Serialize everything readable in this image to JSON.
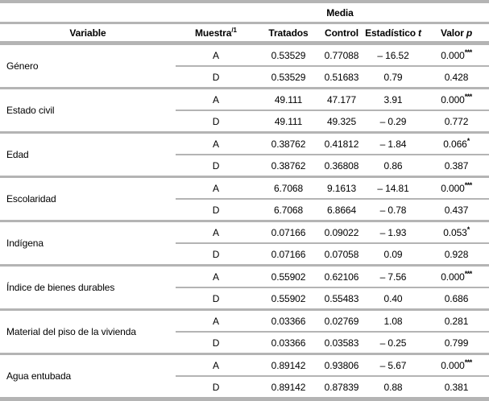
{
  "table": {
    "header": {
      "media": "Media",
      "variable": "Variable",
      "muestra": "Muestra",
      "muestra_sup": "/1",
      "tratados": "Tratados",
      "control": "Control",
      "estadistico": "Estadístico",
      "estadistico_sym": "t",
      "valor": "Valor",
      "valor_sym": "p"
    },
    "colors": {
      "line": "#b4b4b4",
      "text": "#000000"
    },
    "groups": [
      {
        "variable": "Género",
        "rows": [
          {
            "muestra": "A",
            "tratados": "0.53529",
            "control": "0.77088",
            "t": "– 16.52",
            "p": "0.000",
            "stars": "***"
          },
          {
            "muestra": "D",
            "tratados": "0.53529",
            "control": "0.51683",
            "t": "0.79",
            "p": "0.428",
            "stars": ""
          }
        ]
      },
      {
        "variable": "Estado civil",
        "rows": [
          {
            "muestra": "A",
            "tratados": "49.111",
            "control": "47.177",
            "t": "3.91",
            "p": "0.000",
            "stars": "***"
          },
          {
            "muestra": "D",
            "tratados": "49.111",
            "control": "49.325",
            "t": "– 0.29",
            "p": "0.772",
            "stars": ""
          }
        ]
      },
      {
        "variable": "Edad",
        "rows": [
          {
            "muestra": "A",
            "tratados": "0.38762",
            "control": "0.41812",
            "t": "– 1.84",
            "p": "0.066",
            "stars": "*"
          },
          {
            "muestra": "D",
            "tratados": "0.38762",
            "control": "0.36808",
            "t": "0.86",
            "p": "0.387",
            "stars": ""
          }
        ]
      },
      {
        "variable": "Escolaridad",
        "rows": [
          {
            "muestra": "A",
            "tratados": "6.7068",
            "control": "9.1613",
            "t": "– 14.81",
            "p": "0.000",
            "stars": "***"
          },
          {
            "muestra": "D",
            "tratados": "6.7068",
            "control": "6.8664",
            "t": "– 0.78",
            "p": "0.437",
            "stars": ""
          }
        ]
      },
      {
        "variable": "Indígena",
        "rows": [
          {
            "muestra": "A",
            "tratados": "0.07166",
            "control": "0.09022",
            "t": "– 1.93",
            "p": "0.053",
            "stars": "*"
          },
          {
            "muestra": "D",
            "tratados": "0.07166",
            "control": "0.07058",
            "t": "0.09",
            "p": "0.928",
            "stars": ""
          }
        ]
      },
      {
        "variable": "Índice de bienes durables",
        "rows": [
          {
            "muestra": "A",
            "tratados": "0.55902",
            "control": "0.62106",
            "t": "– 7.56",
            "p": "0.000",
            "stars": "***"
          },
          {
            "muestra": "D",
            "tratados": "0.55902",
            "control": "0.55483",
            "t": "0.40",
            "p": "0.686",
            "stars": ""
          }
        ]
      },
      {
        "variable": "Material del piso de la vivienda",
        "rows": [
          {
            "muestra": "A",
            "tratados": "0.03366",
            "control": "0.02769",
            "t": "1.08",
            "p": "0.281",
            "stars": ""
          },
          {
            "muestra": "D",
            "tratados": "0.03366",
            "control": "0.03583",
            "t": "– 0.25",
            "p": "0.799",
            "stars": ""
          }
        ]
      },
      {
        "variable": "Agua entubada",
        "rows": [
          {
            "muestra": "A",
            "tratados": "0.89142",
            "control": "0.93806",
            "t": "– 5.67",
            "p": "0.000",
            "stars": "***"
          },
          {
            "muestra": "D",
            "tratados": "0.89142",
            "control": "0.87839",
            "t": "0.88",
            "p": "0.381",
            "stars": ""
          }
        ]
      }
    ]
  }
}
